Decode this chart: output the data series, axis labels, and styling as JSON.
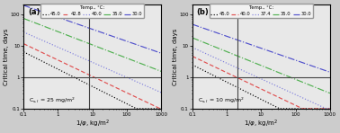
{
  "panel_a": {
    "label": "(a)",
    "annotation": "C$_{s,l}$ = 25 mg/m$^2$",
    "vline_x": 8.0,
    "hline_y": 1.0,
    "temps": [
      "45.0",
      "42.8",
      "40.0",
      "35.0",
      "30.0"
    ],
    "colors": [
      "black",
      "#e05050",
      "#8080dd",
      "#50b050",
      "#5050cc"
    ],
    "linestyles": [
      "dotted",
      "dashed",
      "dotted",
      "dashdot",
      "dashdot"
    ],
    "curve_params": [
      {
        "a": 1.8,
        "b": 0.55
      },
      {
        "a": 3.5,
        "b": 0.52
      },
      {
        "a": 9.0,
        "b": 0.48
      },
      {
        "a": 28.0,
        "b": 0.42
      },
      {
        "a": 80.0,
        "b": 0.38
      }
    ]
  },
  "panel_b": {
    "label": "(b)",
    "annotation": "C$_{s,l}$ = 10 mg/m$^2$",
    "vline_x": 2.0,
    "hline_y": 1.0,
    "temps": [
      "45.0",
      "40.0",
      "37.4",
      "35.0",
      "30.0"
    ],
    "colors": [
      "black",
      "#e05050",
      "#8080dd",
      "#50b050",
      "#5050cc"
    ],
    "linestyles": [
      "dotted",
      "dashed",
      "dotted",
      "dashdot",
      "dashdot"
    ],
    "curve_params": [
      {
        "a": 0.7,
        "b": 0.55
      },
      {
        "a": 1.4,
        "b": 0.52
      },
      {
        "a": 2.8,
        "b": 0.5
      },
      {
        "a": 6.5,
        "b": 0.44
      },
      {
        "a": 20.0,
        "b": 0.38
      }
    ]
  },
  "xlim": [
    0.1,
    1000
  ],
  "ylim": [
    0.1,
    200
  ],
  "xlabel": "1/$\\varphi$, kg/m$^2$",
  "ylabel": "Critical time, days",
  "bg_color": "#e8e8e8",
  "legend_title": "Temp., °C:"
}
